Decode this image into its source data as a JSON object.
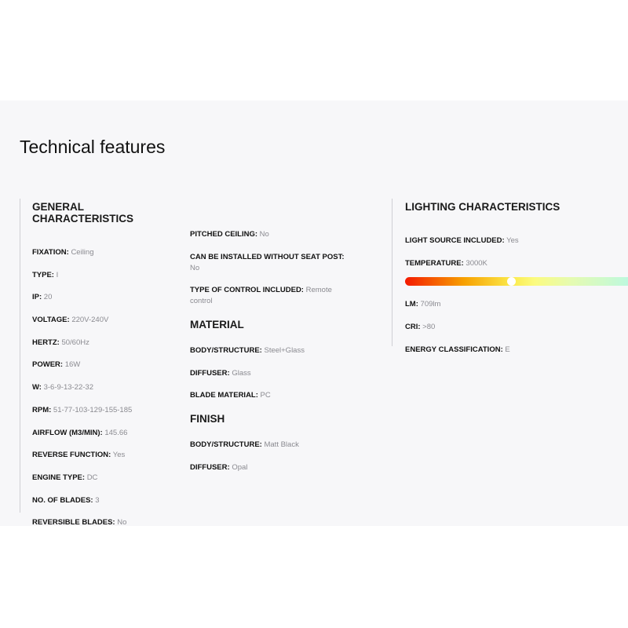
{
  "title": "Technical features",
  "general": {
    "heading": "GENERAL CHARACTERISTICS",
    "items": [
      {
        "label": "FIXATION:",
        "value": "Ceiling"
      },
      {
        "label": "TYPE:",
        "value": "I"
      },
      {
        "label": "IP:",
        "value": "20"
      },
      {
        "label": "VOLTAGE:",
        "value": "220V-240V"
      },
      {
        "label": "HERTZ:",
        "value": "50/60Hz"
      },
      {
        "label": "POWER:",
        "value": "16W"
      },
      {
        "label": "W:",
        "value": "3-6-9-13-22-32"
      },
      {
        "label": "RPM:",
        "value": "51-77-103-129-155-185"
      },
      {
        "label": "AIRFLOW (M3/MIN):",
        "value": "145.66"
      },
      {
        "label": "REVERSE FUNCTION:",
        "value": "Yes"
      },
      {
        "label": "ENGINE TYPE:",
        "value": "DC"
      },
      {
        "label": "NO. OF BLADES:",
        "value": "3"
      },
      {
        "label": "REVERSIBLE BLADES:",
        "value": "No"
      }
    ],
    "items2": [
      {
        "label": "PITCHED CEILING:",
        "value": "No"
      },
      {
        "label": "CAN BE INSTALLED WITHOUT SEAT POST:",
        "value": "No"
      },
      {
        "label": "TYPE OF CONTROL INCLUDED:",
        "value": "Remote control"
      }
    ]
  },
  "material": {
    "heading": "MATERIAL",
    "items": [
      {
        "label": "BODY/STRUCTURE:",
        "value": "Steel+Glass"
      },
      {
        "label": "DIFFUSER:",
        "value": "Glass"
      },
      {
        "label": "BLADE MATERIAL:",
        "value": "PC"
      }
    ]
  },
  "finish": {
    "heading": "FINISH",
    "items": [
      {
        "label": "BODY/STRUCTURE:",
        "value": "Matt Black"
      },
      {
        "label": "DIFFUSER:",
        "value": "Opal"
      }
    ]
  },
  "lighting": {
    "heading": "LIGHTING CHARACTERISTICS",
    "items": [
      {
        "label": "LIGHT SOURCE INCLUDED:",
        "value": "Yes"
      },
      {
        "label": "TEMPERATURE:",
        "value": "3000K"
      },
      {
        "label": "LM:",
        "value": "709lm"
      },
      {
        "label": "CRI:",
        "value": ">80"
      },
      {
        "label": "ENERGY CLASSIFICATION:",
        "value": "E"
      }
    ],
    "temperature_scale_position_percent": 45
  }
}
